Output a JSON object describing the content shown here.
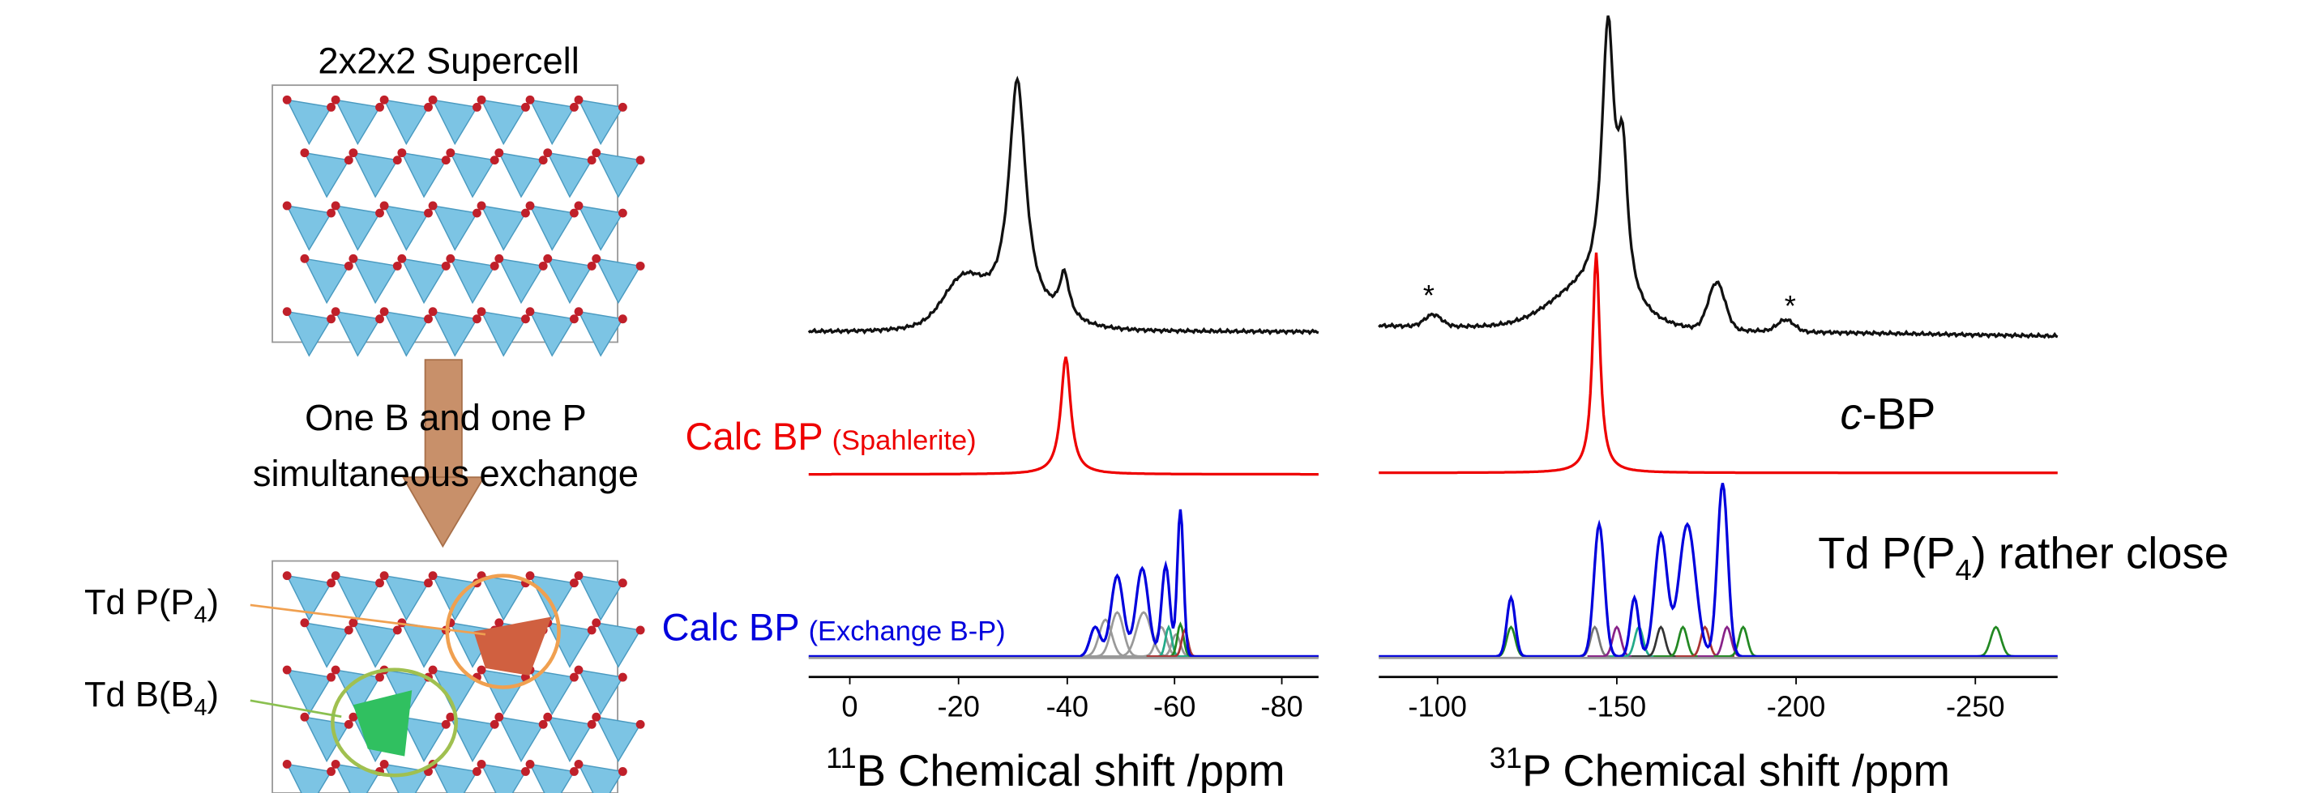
{
  "left": {
    "supercell_label": "2x2x2 Supercell",
    "exchange_label": [
      "One B and one P",
      "simultaneous exchange"
    ],
    "site_labels": [
      {
        "text": "Td P(P",
        "sub": "4",
        "end": ")"
      },
      {
        "text": "Td B(B",
        "sub": "4",
        "end": ")"
      }
    ]
  },
  "panels": [
    {
      "calc_labels": [
        {
          "text": "Calc BP",
          "note": "(Spahlerite)"
        },
        {
          "text": "Calc BP",
          "note": "(Exchange B-P)"
        }
      ],
      "tick_labels": [
        "0",
        "-20",
        "-40",
        "-60",
        "-80"
      ],
      "axis_title": {
        "sup": "11",
        "text": "B Chemical shift /ppm"
      }
    },
    {
      "markers": [
        "*",
        "*"
      ],
      "phase_label": {
        "italic": "c",
        "text": "-BP"
      },
      "note": {
        "text": "Td P(P",
        "sub": "4",
        "end": ") rather close"
      },
      "tick_labels": [
        "-100",
        "-150",
        "-200",
        "-250"
      ],
      "axis_title": {
        "sup": "31",
        "text": "P Chemical shift /ppm"
      }
    }
  ]
}
